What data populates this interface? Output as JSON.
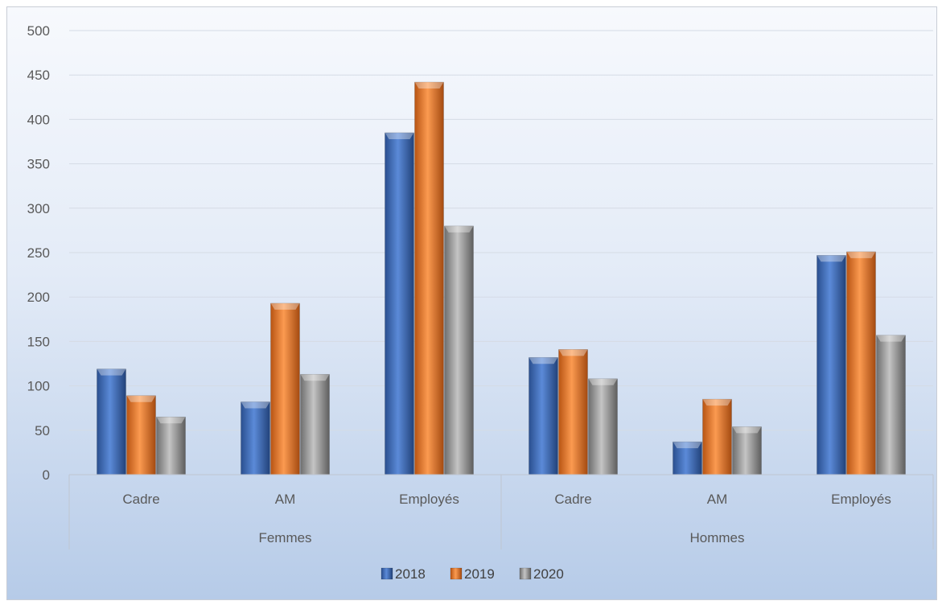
{
  "chart_data": {
    "type": "bar",
    "title": "",
    "xlabel": "",
    "ylabel": "",
    "ylim": [
      0,
      500
    ],
    "yticks": [
      0,
      50,
      100,
      150,
      200,
      250,
      300,
      350,
      400,
      450,
      500
    ],
    "grid": true,
    "legend_position": "bottom",
    "groups": [
      {
        "label": "Femmes",
        "categories": [
          "Cadre",
          "AM",
          "Employés"
        ]
      },
      {
        "label": "Hommes",
        "categories": [
          "Cadre",
          "AM",
          "Employés"
        ]
      }
    ],
    "series": [
      {
        "name": "2018",
        "color": "#4472c4",
        "values": [
          119,
          82,
          385,
          132,
          37,
          247
        ]
      },
      {
        "name": "2019",
        "color": "#ed7d31",
        "values": [
          89,
          193,
          442,
          141,
          85,
          251
        ]
      },
      {
        "name": "2020",
        "color": "#a5a5a5",
        "values": [
          65,
          113,
          280,
          108,
          54,
          157
        ]
      }
    ]
  }
}
